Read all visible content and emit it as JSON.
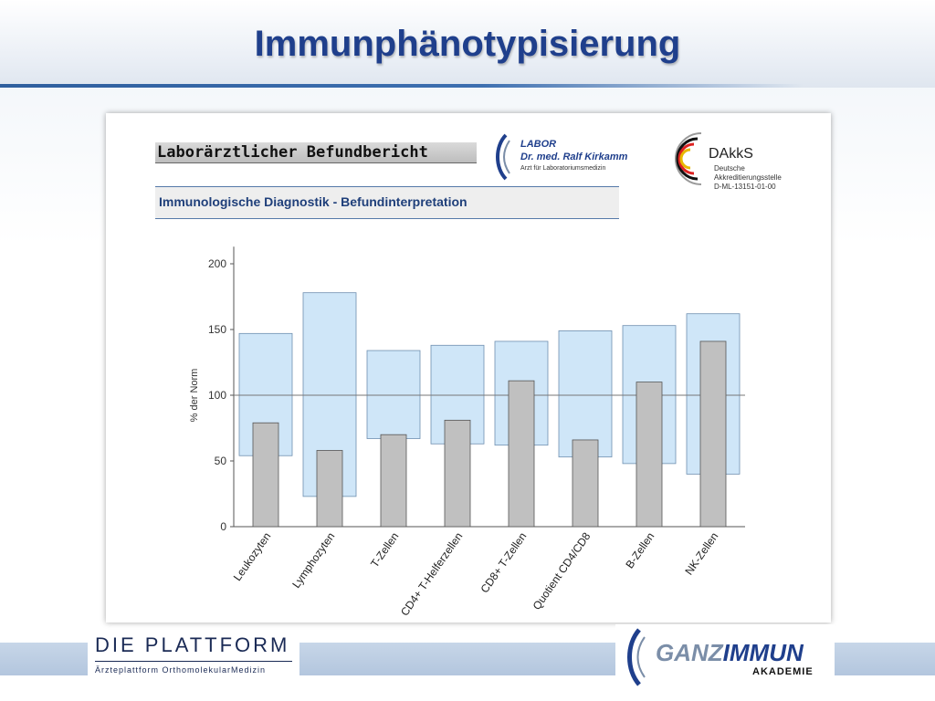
{
  "slide": {
    "title": "Immunphänotypisierung"
  },
  "report": {
    "header": "Laborärztlicher Befundbericht",
    "subheader": "Immunologische Diagnostik - Befundinterpretation"
  },
  "labor_logo": {
    "line1": "LABOR",
    "line2": "Dr. med. Ralf Kirkamm",
    "line3": "Arzt für Laboratoriumsmedizin"
  },
  "dakks_logo": {
    "name": "DAkkS",
    "line1": "Deutsche",
    "line2": "Akkreditierungsstelle",
    "line3": "D-ML-13151-01-00"
  },
  "footer": {
    "plattform_title": "DIE PLATTFORM",
    "plattform_sub": "Ärzteplattform OrthomolekularMedizin",
    "ganz_part1": "GANZ",
    "ganz_part2": "IMMUN",
    "akademie": "AKADEMIE"
  },
  "colors": {
    "title": "#1f3f8c",
    "range_fill": "#cfe6f8",
    "range_stroke": "#6f8fb0",
    "value_fill": "#c0c0c0",
    "value_stroke": "#555555"
  },
  "chart_data": {
    "type": "bar",
    "title": "",
    "ylabel": "% der Norm",
    "xlabel": "",
    "ylim": [
      0,
      220
    ],
    "yticks": [
      0,
      50,
      100,
      150,
      200
    ],
    "reference_line": 100,
    "categories": [
      "Leukozyten",
      "Lymphozyten",
      "T-Zellen",
      "CD4+ T-Helferzellen",
      "CD8+ T-Zellen",
      "Quotient CD4/CD8",
      "B-Zellen",
      "NK-Zellen"
    ],
    "series": [
      {
        "role": "normal range",
        "low": [
          54,
          23,
          67,
          63,
          62,
          53,
          48,
          40
        ],
        "high": [
          147,
          178,
          134,
          138,
          141,
          149,
          153,
          162
        ]
      },
      {
        "role": "measured",
        "values": [
          79,
          58,
          70,
          81,
          111,
          66,
          110,
          141
        ]
      }
    ]
  }
}
